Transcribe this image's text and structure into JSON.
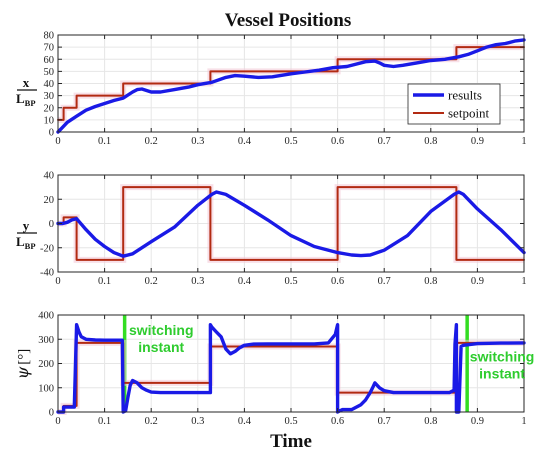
{
  "chart_data": {
    "title": "Vessel Positions",
    "xlabel": "Time",
    "xlim": [
      0,
      1
    ],
    "xticks": [
      "0",
      "0.1",
      "0.2",
      "0.3",
      "0.4",
      "0.5",
      "0.6",
      "0.7",
      "0.8",
      "0.9",
      "1"
    ],
    "colors": {
      "results": "#1a1ae6",
      "setpoint": "#b22a12",
      "switch": "#33dd22",
      "grid": "#e6e6e6"
    },
    "panels": [
      {
        "id": "x",
        "type": "line",
        "ylabel_num": "x",
        "ylabel_den": "L",
        "ylabel_sub": "BP",
        "ylim": [
          0,
          80
        ],
        "yticks": [
          "0",
          "10",
          "20",
          "30",
          "40",
          "50",
          "60",
          "70",
          "80"
        ],
        "grid": true,
        "legend_position": "lower-right",
        "series": [
          {
            "name": "results",
            "x": [
              0,
              0.01,
              0.02,
              0.04,
              0.06,
              0.08,
              0.1,
              0.12,
              0.14,
              0.16,
              0.17,
              0.18,
              0.2,
              0.22,
              0.25,
              0.28,
              0.3,
              0.33,
              0.36,
              0.38,
              0.4,
              0.43,
              0.46,
              0.5,
              0.53,
              0.56,
              0.59,
              0.62,
              0.64,
              0.66,
              0.68,
              0.69,
              0.7,
              0.72,
              0.74,
              0.77,
              0.8,
              0.83,
              0.86,
              0.88,
              0.9,
              0.92,
              0.94,
              0.96,
              0.98,
              1.0
            ],
            "y": [
              0,
              4,
              8,
              13,
              18,
              21,
              23.5,
              26,
              28,
              33,
              35,
              35.5,
              33,
              33,
              35,
              37,
              39,
              41,
              45,
              46.5,
              46,
              45,
              45.5,
              48,
              49.5,
              51,
              53,
              54,
              56,
              58,
              58.5,
              57,
              55,
              54,
              55,
              57,
              59,
              60,
              62,
              64,
              67,
              70,
              72,
              73,
              75,
              76
            ]
          },
          {
            "name": "setpoint",
            "x": [
              0,
              0.012,
              0.012,
              0.04,
              0.04,
              0.14,
              0.14,
              0.327,
              0.327,
              0.6,
              0.6,
              0.855,
              0.855,
              1.0
            ],
            "y": [
              10,
              10,
              20,
              20,
              30,
              30,
              40,
              40,
              50,
              50,
              60,
              60,
              70,
              70
            ]
          }
        ]
      },
      {
        "id": "y",
        "type": "line",
        "ylabel_num": "y",
        "ylabel_den": "L",
        "ylabel_sub": "BP",
        "ylim": [
          -40,
          40
        ],
        "yticks": [
          "-40",
          "-20",
          "0",
          "20",
          "40"
        ],
        "grid": true,
        "series": [
          {
            "name": "results",
            "x": [
              0,
              0.01,
              0.02,
              0.03,
              0.04,
              0.06,
              0.08,
              0.1,
              0.12,
              0.14,
              0.16,
              0.2,
              0.25,
              0.3,
              0.33,
              0.34,
              0.36,
              0.4,
              0.45,
              0.5,
              0.55,
              0.6,
              0.63,
              0.65,
              0.67,
              0.7,
              0.75,
              0.8,
              0.85,
              0.86,
              0.87,
              0.9,
              0.95,
              1.0
            ],
            "y": [
              0,
              0,
              1,
              3,
              4,
              -5,
              -13,
              -19,
              -24,
              -27,
              -25,
              -15,
              -3,
              15,
              24,
              26,
              24,
              15,
              3,
              -10,
              -19,
              -24,
              -26,
              -26.5,
              -26,
              -22,
              -10,
              10,
              24,
              26,
              24,
              12,
              -5,
              -24
            ]
          },
          {
            "name": "setpoint",
            "x": [
              0,
              0.012,
              0.012,
              0.04,
              0.04,
              0.14,
              0.14,
              0.327,
              0.327,
              0.6,
              0.6,
              0.855,
              0.855,
              1.0
            ],
            "y": [
              0,
              0,
              5,
              5,
              -30,
              -30,
              30,
              30,
              -30,
              -30,
              30,
              30,
              -30,
              -30
            ]
          }
        ]
      },
      {
        "id": "psi",
        "type": "line",
        "ylabel_psi": "ψ",
        "ylabel_unit": "[°]",
        "ylim": [
          0,
          400
        ],
        "yticks": [
          "0",
          "100",
          "200",
          "300",
          "400"
        ],
        "grid": true,
        "series": [
          {
            "name": "results",
            "x": [
              0,
              0.012,
              0.012,
              0.035,
              0.04,
              0.045,
              0.05,
              0.06,
              0.08,
              0.1,
              0.12,
              0.138,
              0.14,
              0.14,
              0.145,
              0.15,
              0.155,
              0.16,
              0.17,
              0.18,
              0.19,
              0.2,
              0.22,
              0.25,
              0.3,
              0.327,
              0.327,
              0.33,
              0.34,
              0.35,
              0.36,
              0.37,
              0.38,
              0.39,
              0.4,
              0.42,
              0.45,
              0.5,
              0.55,
              0.58,
              0.595,
              0.6,
              0.6,
              0.61,
              0.63,
              0.65,
              0.66,
              0.67,
              0.675,
              0.68,
              0.69,
              0.7,
              0.72,
              0.75,
              0.8,
              0.84,
              0.85,
              0.852,
              0.855,
              0.855,
              0.86,
              0.865,
              0.87,
              0.9,
              0.95,
              1.0
            ],
            "y": [
              0,
              0,
              20,
              20,
              360,
              330,
              310,
              300,
              297,
              296,
              296,
              296,
              0,
              0,
              5,
              60,
              110,
              130,
              120,
              100,
              90,
              82,
              80,
              80,
              80,
              80,
              360,
              350,
              330,
              310,
              260,
              240,
              250,
              265,
              275,
              280,
              281,
              281,
              281,
              285,
              320,
              360,
              0,
              10,
              10,
              30,
              50,
              80,
              100,
              120,
              100,
              88,
              80,
              80,
              80,
              80,
              90,
              280,
              360,
              0,
              0,
              270,
              275,
              282,
              284,
              285
            ]
          },
          {
            "name": "setpoint",
            "x": [
              0,
              0.012,
              0.012,
              0.04,
              0.04,
              0.14,
              0.14,
              0.327,
              0.327,
              0.6,
              0.6,
              0.855,
              0.855,
              1.0
            ],
            "y": [
              0,
              0,
              25,
              25,
              285,
              285,
              120,
              120,
              270,
              270,
              80,
              80,
              285,
              285
            ]
          }
        ],
        "switch_lines": [
          0.143,
          0.878
        ],
        "annotations": [
          {
            "lines": [
              "switching",
              "instant"
            ]
          },
          {
            "lines": [
              "switching",
              "instant"
            ]
          }
        ]
      }
    ]
  }
}
